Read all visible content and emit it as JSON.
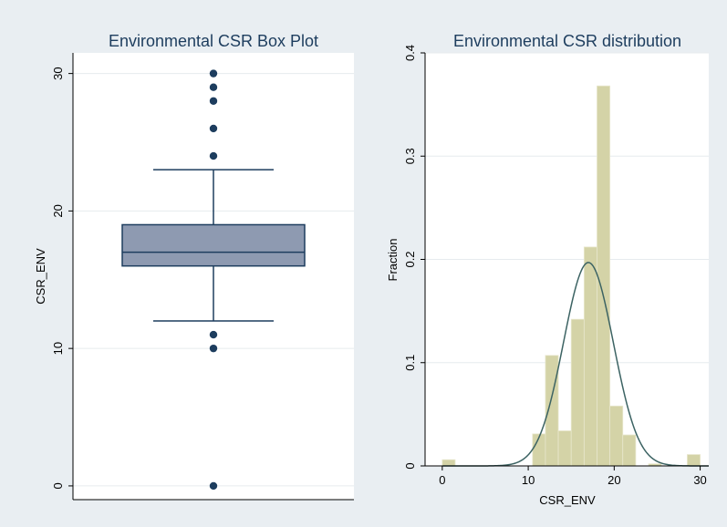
{
  "chart_data": [
    {
      "type": "box",
      "title": "Environmental CSR Box Plot",
      "ylabel": "CSR_ENV",
      "xlabel": "",
      "ylim": [
        -1,
        31.5
      ],
      "yticks": [
        0,
        10,
        20,
        30
      ],
      "grid": true,
      "box": {
        "q1": 16,
        "median": 17,
        "q3": 19,
        "whisker_low": 12,
        "whisker_high": 23
      },
      "outliers": [
        0,
        10,
        11,
        24,
        26,
        28,
        29,
        30
      ],
      "colors": {
        "box_fill": "#8e9ab1",
        "box_line": "#1d3d5e",
        "outlier": "#1d3d5e"
      }
    },
    {
      "type": "histogram",
      "title": "Environmental CSR distribution",
      "xlabel": "CSR_ENV",
      "ylabel": "Fraction",
      "xlim": [
        -2,
        31
      ],
      "ylim": [
        0,
        0.4
      ],
      "xticks": [
        0,
        10,
        20,
        30
      ],
      "yticks": [
        0,
        0.1,
        0.2,
        0.3,
        0.4
      ],
      "grid": true,
      "bins": [
        {
          "x0": 0.0,
          "x1": 1.5,
          "value": 0.006
        },
        {
          "x0": 10.5,
          "x1": 12.0,
          "value": 0.031
        },
        {
          "x0": 12.0,
          "x1": 13.5,
          "value": 0.107
        },
        {
          "x0": 13.5,
          "x1": 15.0,
          "value": 0.034
        },
        {
          "x0": 15.0,
          "x1": 16.5,
          "value": 0.142
        },
        {
          "x0": 16.5,
          "x1": 18.0,
          "value": 0.212
        },
        {
          "x0": 18.0,
          "x1": 19.5,
          "value": 0.368
        },
        {
          "x0": 19.5,
          "x1": 21.0,
          "value": 0.058
        },
        {
          "x0": 21.0,
          "x1": 22.5,
          "value": 0.03
        },
        {
          "x0": 24.0,
          "x1": 25.5,
          "value": 0.002
        },
        {
          "x0": 28.5,
          "x1": 30.0,
          "value": 0.011
        }
      ],
      "normal_curve": {
        "mean": 17.0,
        "sd": 2.9,
        "peak": 0.197
      },
      "colors": {
        "bar_fill": "#d4d3a7",
        "bar_line": "#e8e7cd",
        "curve": "#3c6363"
      }
    }
  ]
}
